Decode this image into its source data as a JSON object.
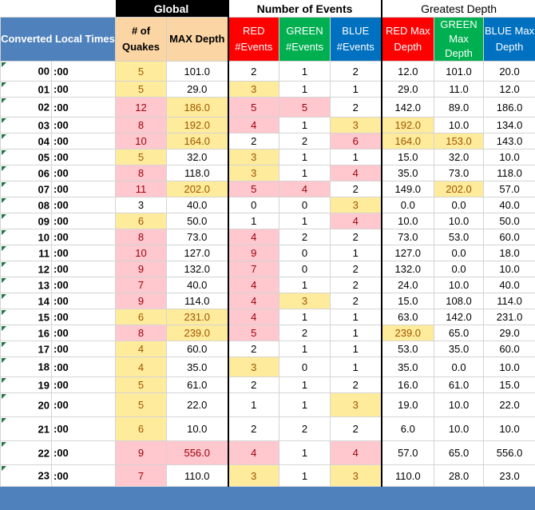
{
  "header": {
    "global": "Global",
    "number_of_events": "Number of Events",
    "greatest_depth": "Greatest Depth",
    "converted_local_times": "Converted Local Times",
    "num_quakes": "# of Quakes",
    "max_depth": "MAX Depth",
    "red_events": "RED #Events",
    "green_events": "GREEN #Events",
    "blue_events": "BLUE #Events",
    "red_max_depth": "RED Max Depth",
    "green_max_depth": "GREEN Max Depth",
    "blue_max_depth": "BLUE Max Depth"
  },
  "colors": {
    "header_blue": "#4f81bd",
    "red": "#ff0000",
    "green": "#00b050",
    "blue": "#0070c0",
    "highlight_yellow": "#ffeb9c",
    "highlight_pink": "#ffc7ce",
    "global_header_bg": "#fcd5a4"
  },
  "rows": [
    {
      "hour": "00",
      "min": ":00",
      "quakes": "5",
      "max": "101.0",
      "red": "2",
      "green": "1",
      "blue": "2",
      "rmax": "12.0",
      "gmax": "101.0",
      "bmax": "20.0",
      "hl": [
        "y",
        "",
        "",
        "",
        "",
        "",
        "",
        "",
        ""
      ]
    },
    {
      "hour": "01",
      "min": ":00",
      "quakes": "5",
      "max": "29.0",
      "red": "3",
      "green": "1",
      "blue": "1",
      "rmax": "29.0",
      "gmax": "11.0",
      "bmax": "12.0",
      "hl": [
        "y",
        "",
        "y",
        "",
        "",
        "",
        "",
        "",
        ""
      ]
    },
    {
      "hour": "02",
      "min": ":00",
      "quakes": "12",
      "max": "186.0",
      "red": "5",
      "green": "5",
      "blue": "2",
      "rmax": "142.0",
      "gmax": "89.0",
      "bmax": "186.0",
      "hl": [
        "p",
        "y",
        "p",
        "p",
        "",
        "",
        "",
        "",
        "y"
      ]
    },
    {
      "hour": "03",
      "min": ":00",
      "quakes": "8",
      "max": "192.0",
      "red": "4",
      "green": "1",
      "blue": "3",
      "rmax": "192.0",
      "gmax": "10.0",
      "bmax": "134.0",
      "hl": [
        "p",
        "y",
        "p",
        "",
        "y",
        "y",
        "",
        "",
        ""
      ]
    },
    {
      "hour": "04",
      "min": ":00",
      "quakes": "10",
      "max": "164.0",
      "red": "2",
      "green": "2",
      "blue": "6",
      "rmax": "164.0",
      "gmax": "153.0",
      "bmax": "143.0",
      "hl": [
        "p",
        "y",
        "",
        "",
        "p",
        "y",
        "y",
        "",
        ""
      ]
    },
    {
      "hour": "05",
      "min": ":00",
      "quakes": "5",
      "max": "32.0",
      "red": "3",
      "green": "1",
      "blue": "1",
      "rmax": "15.0",
      "gmax": "32.0",
      "bmax": "10.0",
      "hl": [
        "y",
        "",
        "y",
        "",
        "",
        "",
        "",
        "",
        ""
      ]
    },
    {
      "hour": "06",
      "min": ":00",
      "quakes": "8",
      "max": "118.0",
      "red": "3",
      "green": "1",
      "blue": "4",
      "rmax": "35.0",
      "gmax": "73.0",
      "bmax": "118.0",
      "hl": [
        "p",
        "",
        "y",
        "",
        "p",
        "",
        "",
        "",
        ""
      ]
    },
    {
      "hour": "07",
      "min": ":00",
      "quakes": "11",
      "max": "202.0",
      "red": "5",
      "green": "4",
      "blue": "2",
      "rmax": "149.0",
      "gmax": "202.0",
      "bmax": "57.0",
      "hl": [
        "p",
        "y",
        "p",
        "p",
        "",
        "",
        "y",
        "",
        ""
      ]
    },
    {
      "hour": "08",
      "min": ":00",
      "quakes": "3",
      "max": "40.0",
      "red": "0",
      "green": "0",
      "blue": "3",
      "rmax": "0.0",
      "gmax": "0.0",
      "bmax": "40.0",
      "hl": [
        "",
        "",
        "",
        "",
        "y",
        "",
        "",
        "",
        ""
      ]
    },
    {
      "hour": "09",
      "min": ":00",
      "quakes": "6",
      "max": "50.0",
      "red": "1",
      "green": "1",
      "blue": "4",
      "rmax": "10.0",
      "gmax": "10.0",
      "bmax": "50.0",
      "hl": [
        "y",
        "",
        "",
        "",
        "p",
        "",
        "",
        "",
        ""
      ]
    },
    {
      "hour": "10",
      "min": ":00",
      "quakes": "8",
      "max": "73.0",
      "red": "4",
      "green": "2",
      "blue": "2",
      "rmax": "73.0",
      "gmax": "53.0",
      "bmax": "60.0",
      "hl": [
        "p",
        "",
        "p",
        "",
        "",
        "",
        "",
        "",
        ""
      ]
    },
    {
      "hour": "11",
      "min": ":00",
      "quakes": "10",
      "max": "127.0",
      "red": "9",
      "green": "0",
      "blue": "1",
      "rmax": "127.0",
      "gmax": "0.0",
      "bmax": "18.0",
      "hl": [
        "p",
        "",
        "p",
        "",
        "",
        "",
        "",
        "",
        ""
      ]
    },
    {
      "hour": "12",
      "min": ":00",
      "quakes": "9",
      "max": "132.0",
      "red": "7",
      "green": "0",
      "blue": "2",
      "rmax": "132.0",
      "gmax": "0.0",
      "bmax": "10.0",
      "hl": [
        "p",
        "",
        "p",
        "",
        "",
        "",
        "",
        "",
        ""
      ]
    },
    {
      "hour": "13",
      "min": ":00",
      "quakes": "7",
      "max": "40.0",
      "red": "4",
      "green": "1",
      "blue": "2",
      "rmax": "24.0",
      "gmax": "10.0",
      "bmax": "40.0",
      "hl": [
        "p",
        "",
        "p",
        "",
        "",
        "",
        "",
        "",
        ""
      ]
    },
    {
      "hour": "14",
      "min": ":00",
      "quakes": "9",
      "max": "114.0",
      "red": "4",
      "green": "3",
      "blue": "2",
      "rmax": "15.0",
      "gmax": "108.0",
      "bmax": "114.0",
      "hl": [
        "p",
        "",
        "p",
        "y",
        "",
        "",
        "",
        "",
        ""
      ]
    },
    {
      "hour": "15",
      "min": ":00",
      "quakes": "6",
      "max": "231.0",
      "red": "4",
      "green": "1",
      "blue": "1",
      "rmax": "63.0",
      "gmax": "142.0",
      "bmax": "231.0",
      "hl": [
        "y",
        "y",
        "p",
        "",
        "",
        "",
        "",
        "",
        "y"
      ]
    },
    {
      "hour": "16",
      "min": ":00",
      "quakes": "8",
      "max": "239.0",
      "red": "5",
      "green": "2",
      "blue": "1",
      "rmax": "239.0",
      "gmax": "65.0",
      "bmax": "29.0",
      "hl": [
        "p",
        "y",
        "p",
        "",
        "",
        "y",
        "",
        "",
        ""
      ]
    },
    {
      "hour": "17",
      "min": ":00",
      "quakes": "4",
      "max": "60.0",
      "red": "2",
      "green": "1",
      "blue": "1",
      "rmax": "53.0",
      "gmax": "35.0",
      "bmax": "60.0",
      "hl": [
        "y",
        "",
        "",
        "",
        "",
        "",
        "",
        "",
        ""
      ]
    },
    {
      "hour": "18",
      "min": ":00",
      "quakes": "4",
      "max": "35.0",
      "red": "3",
      "green": "0",
      "blue": "1",
      "rmax": "35.0",
      "gmax": "0.0",
      "bmax": "10.0",
      "hl": [
        "y",
        "",
        "y",
        "",
        "",
        "",
        "",
        "",
        ""
      ]
    },
    {
      "hour": "19",
      "min": ":00",
      "quakes": "5",
      "max": "61.0",
      "red": "2",
      "green": "1",
      "blue": "2",
      "rmax": "16.0",
      "gmax": "61.0",
      "bmax": "15.0",
      "hl": [
        "y",
        "",
        "",
        "",
        "",
        "",
        "",
        "",
        ""
      ]
    },
    {
      "hour": "20",
      "min": ":00",
      "quakes": "5",
      "max": "22.0",
      "red": "1",
      "green": "1",
      "blue": "3",
      "rmax": "19.0",
      "gmax": "10.0",
      "bmax": "22.0",
      "hl": [
        "y",
        "",
        "",
        "",
        "y",
        "",
        "",
        "",
        ""
      ]
    },
    {
      "hour": "21",
      "min": ":00",
      "quakes": "6",
      "max": "10.0",
      "red": "2",
      "green": "2",
      "blue": "2",
      "rmax": "6.0",
      "gmax": "10.0",
      "bmax": "10.0",
      "hl": [
        "y",
        "",
        "",
        "",
        "",
        "",
        "",
        "",
        ""
      ]
    },
    {
      "hour": "22",
      "min": ":00",
      "quakes": "9",
      "max": "556.0",
      "red": "4",
      "green": "1",
      "blue": "4",
      "rmax": "57.0",
      "gmax": "65.0",
      "bmax": "556.0",
      "hl": [
        "p",
        "p",
        "p",
        "",
        "p",
        "",
        "",
        "",
        "p"
      ]
    },
    {
      "hour": "23",
      "min": ":00",
      "quakes": "7",
      "max": "110.0",
      "red": "3",
      "green": "1",
      "blue": "3",
      "rmax": "110.0",
      "gmax": "28.0",
      "bmax": "23.0",
      "hl": [
        "p",
        "",
        "y",
        "",
        "y",
        "",
        "",
        "",
        ""
      ]
    }
  ]
}
